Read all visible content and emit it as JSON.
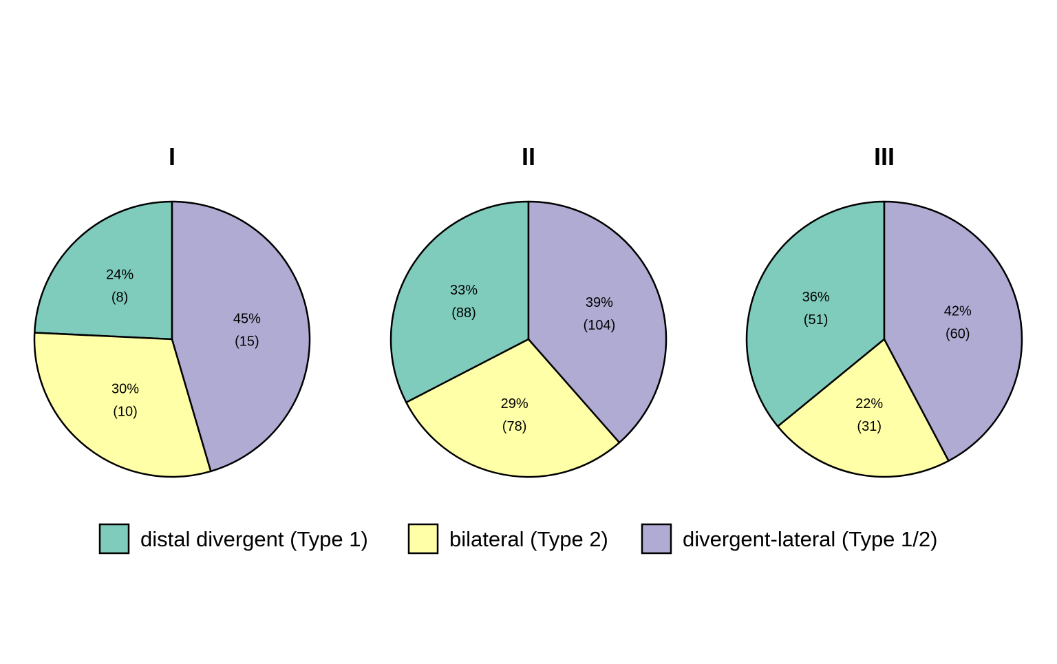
{
  "chart_data": [
    {
      "type": "pie",
      "title": "I",
      "slices": [
        {
          "category": "distal divergent (Type 1)",
          "percent_label": "24%",
          "count_label": "(8)",
          "value": 8
        },
        {
          "category": "bilateral (Type 2)",
          "percent_label": "30%",
          "count_label": "(10)",
          "value": 10
        },
        {
          "category": "divergent-lateral (Type 1/2)",
          "percent_label": "45%",
          "count_label": "(15)",
          "value": 15
        }
      ]
    },
    {
      "type": "pie",
      "title": "II",
      "slices": [
        {
          "category": "distal divergent (Type 1)",
          "percent_label": "33%",
          "count_label": "(88)",
          "value": 88
        },
        {
          "category": "bilateral (Type 2)",
          "percent_label": "29%",
          "count_label": "(78)",
          "value": 78
        },
        {
          "category": "divergent-lateral (Type 1/2)",
          "percent_label": "39%",
          "count_label": "(104)",
          "value": 104
        }
      ]
    },
    {
      "type": "pie",
      "title": "III",
      "slices": [
        {
          "category": "distal divergent (Type 1)",
          "percent_label": "36%",
          "count_label": "(51)",
          "value": 51
        },
        {
          "category": "bilateral (Type 2)",
          "percent_label": "22%",
          "count_label": "(31)",
          "value": 31
        },
        {
          "category": "divergent-lateral (Type 1/2)",
          "percent_label": "42%",
          "count_label": "(60)",
          "value": 60
        }
      ]
    }
  ],
  "legend": {
    "placement": "bottom",
    "items": [
      {
        "label": "distal divergent (Type 1)",
        "color": "#7fcbbc"
      },
      {
        "label": "bilateral (Type 2)",
        "color": "#ffffa8"
      },
      {
        "label": "divergent-lateral (Type 1/2)",
        "color": "#b0abd3"
      }
    ]
  },
  "colors": {
    "distal divergent (Type 1)": "#7fcbbc",
    "bilateral (Type 2)": "#ffffa8",
    "divergent-lateral (Type 1/2)": "#b0abd3",
    "outline": "#000000"
  }
}
